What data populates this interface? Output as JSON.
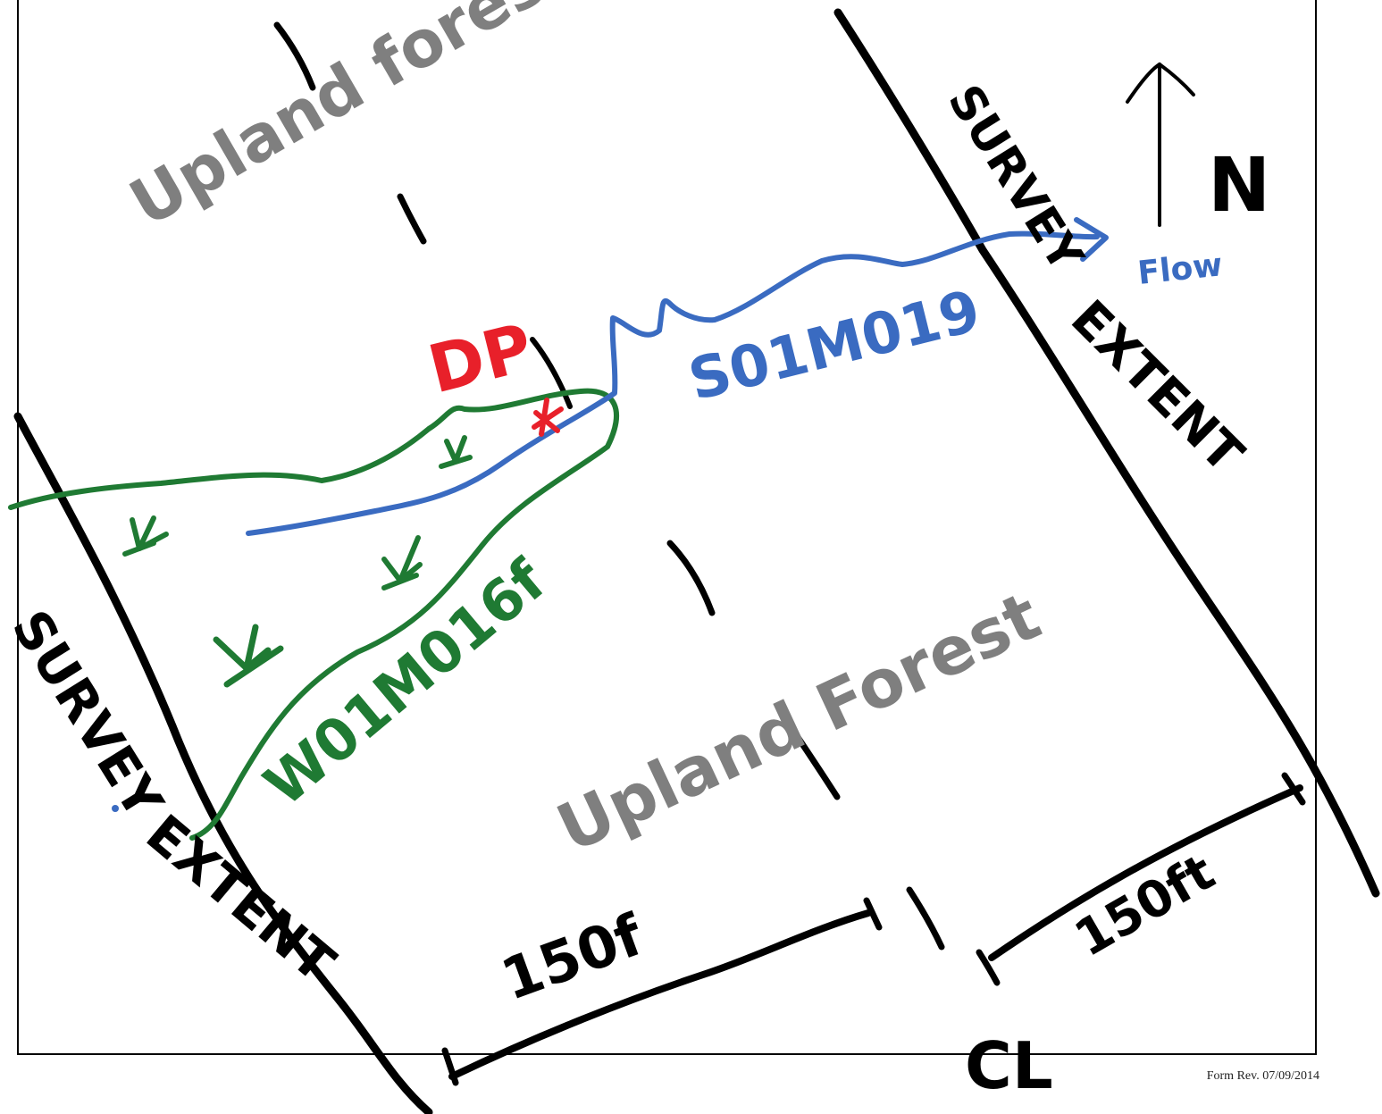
{
  "labels": {
    "upland_forest_top": "Upland forest",
    "upland_forest_bottom": "Upland Forest",
    "north": "N",
    "flow": "Flow",
    "stream_id": "S01M019",
    "wetland_id": "W01M016f",
    "dp": "DP",
    "survey_left": "SURVEY",
    "extent_left": "EXTENT",
    "survey_right": "SURVEY",
    "extent_right": "EXTENT",
    "dim_left": "150f",
    "dim_right": "150ft",
    "centerline": "CL",
    "form_rev": "Form Rev. 07/09/2014"
  },
  "colors": {
    "ink": "#000000",
    "stream": "#3a6bc1",
    "wetland": "#1f7a33",
    "upland_text": "#7f7f7f",
    "data_point": "#e8202a"
  },
  "symbols": {
    "wetland_marsh": "marsh-grass-icon",
    "north_arrow": "north-arrow-icon",
    "data_point": "x-marker-icon"
  }
}
